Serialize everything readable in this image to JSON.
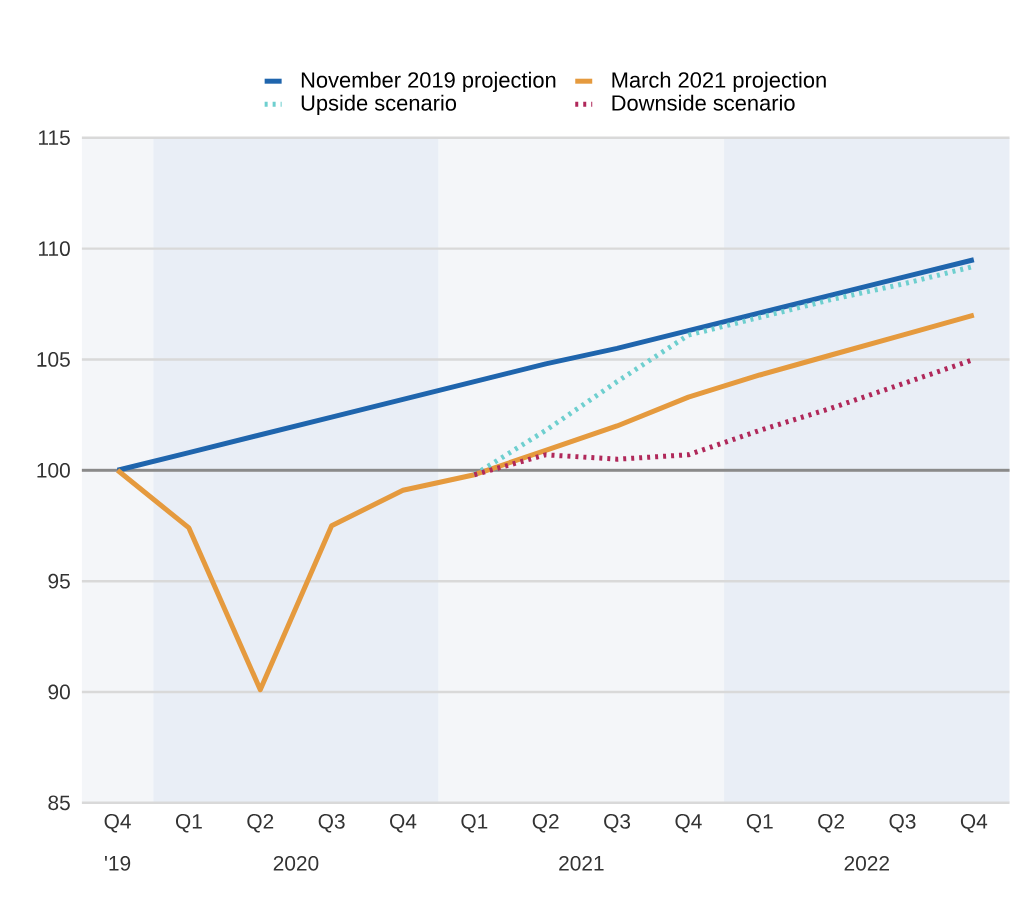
{
  "chart_data": {
    "type": "line",
    "categories": [
      "Q4",
      "Q1",
      "Q2",
      "Q3",
      "Q4",
      "Q1",
      "Q2",
      "Q3",
      "Q4",
      "Q1",
      "Q2",
      "Q3",
      "Q4"
    ],
    "series": [
      {
        "name": "November 2019 projection",
        "color": "#1f65ad",
        "line_style": "solid",
        "values": [
          100,
          100.8,
          101.6,
          102.4,
          103.2,
          104.0,
          104.8,
          105.5,
          106.3,
          107.1,
          107.9,
          108.7,
          109.5
        ]
      },
      {
        "name": "March 2021 projection",
        "color": "#e59a3e",
        "line_style": "solid",
        "values": [
          100,
          97.4,
          90.1,
          97.5,
          99.1,
          99.8,
          100.9,
          102.0,
          103.3,
          104.3,
          105.2,
          106.1,
          107.0
        ]
      },
      {
        "name": "Upside scenario",
        "color": "#6ecfcf",
        "line_style": "dotted",
        "values": [
          null,
          null,
          null,
          null,
          null,
          99.8,
          101.8,
          104.0,
          106.1,
          106.9,
          107.7,
          108.4,
          109.2
        ]
      },
      {
        "name": "Downside scenario",
        "color": "#b0285a",
        "line_style": "dotted",
        "values": [
          null,
          null,
          null,
          null,
          null,
          99.8,
          100.7,
          100.5,
          100.7,
          101.8,
          102.8,
          103.9,
          105.0
        ]
      }
    ],
    "ylim": [
      85,
      115
    ],
    "yticks": [
      85,
      90,
      95,
      100,
      105,
      110,
      115
    ],
    "grid": "y",
    "legend": "top",
    "marker": "none",
    "ref_lines": [
      {
        "axis": "y",
        "value": 100,
        "color": "#8a8a8a"
      }
    ],
    "annotations": [
      "'19",
      "2020",
      "2021",
      "2022"
    ]
  }
}
